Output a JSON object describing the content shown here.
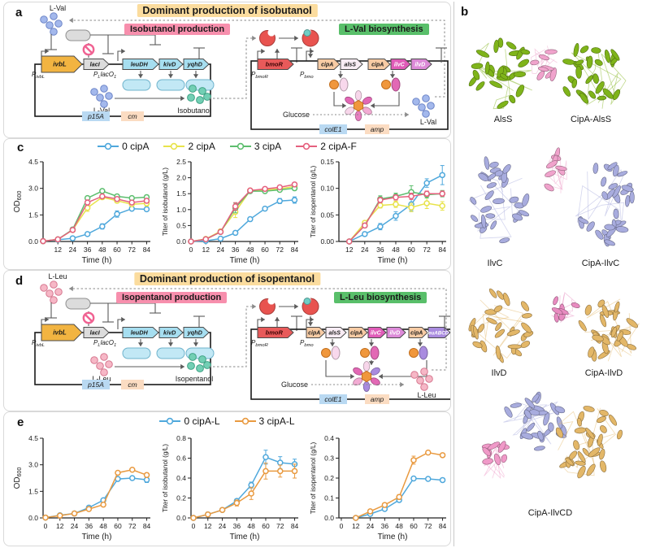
{
  "panel_a": {
    "label": "a",
    "title": "Dominant production of isobutanol",
    "module_left": "Isobutanol production",
    "module_right": "L-Val biosynthesis",
    "feedback_molecule": "L-Val",
    "intermediate": "L-Val",
    "product": "Isobutanol",
    "substrate": "Glucose",
    "output": "L-Val",
    "promoter1": [
      {
        "t": "P",
        "sub": false
      },
      {
        "t": "ivbL",
        "sub": true
      }
    ],
    "promoter2": [
      {
        "t": "P",
        "sub": false
      },
      {
        "t": "L",
        "sub": true
      },
      {
        "t": "lacO",
        "sub": false
      },
      {
        "t": "1",
        "sub": true
      }
    ],
    "promoter3": [
      {
        "t": "P",
        "sub": false
      },
      {
        "t": "bmoR",
        "sub": true
      }
    ],
    "promoter4": [
      {
        "t": "P",
        "sub": false
      },
      {
        "t": "bmo",
        "sub": true
      }
    ],
    "plasmid1": {
      "genes": [
        "ivbL",
        "lacI",
        "leuDH",
        "kivD",
        "yqhD"
      ],
      "ori": "p15A",
      "marker": "cm"
    },
    "plasmid2": {
      "genes": [
        "bmoR",
        "cipA",
        "alsS",
        "cipA",
        "ilvC",
        "ilvD"
      ],
      "ori": "colE1",
      "marker": "amp"
    }
  },
  "panel_d": {
    "label": "d",
    "title": "Dominant production of isopentanol",
    "module_left": "Isopentanol production",
    "module_right": "L-Leu biosynthesis",
    "feedback_molecule": "L-Leu",
    "intermediate": "L-Leu",
    "product": "Isopentanol",
    "substrate": "Glucose",
    "output": "L-Leu",
    "promoter1": [
      {
        "t": "P",
        "sub": false
      },
      {
        "t": "ivbL",
        "sub": true
      }
    ],
    "promoter2": [
      {
        "t": "P",
        "sub": false
      },
      {
        "t": "L",
        "sub": true
      },
      {
        "t": "lacO",
        "sub": false
      },
      {
        "t": "1",
        "sub": true
      }
    ],
    "promoter3": [
      {
        "t": "P",
        "sub": false
      },
      {
        "t": "bmoR",
        "sub": true
      }
    ],
    "promoter4": [
      {
        "t": "P",
        "sub": false
      },
      {
        "t": "bmo",
        "sub": true
      }
    ],
    "plasmid1": {
      "genes": [
        "ivbL",
        "lacI",
        "leuDH",
        "kivD",
        "yqhD"
      ],
      "ori": "p15A",
      "marker": "cm"
    },
    "plasmid2": {
      "genes": [
        "bmoR",
        "cipA",
        "alsS",
        "cipA",
        "ilvC",
        "ilvD",
        "cipA",
        "leuABCD"
      ],
      "ori": "colE1",
      "marker": "amp"
    }
  },
  "panel_b": {
    "label": "b",
    "structures": [
      {
        "name": "AlsS",
        "colors": [
          "#7FB41A"
        ]
      },
      {
        "name": "CipA-AlsS",
        "colors": [
          "#F0A3CC",
          "#7FB41A"
        ]
      },
      {
        "name": "IlvC",
        "colors": [
          "#A8ACDE"
        ]
      },
      {
        "name": "CipA-IlvC",
        "colors": [
          "#F0A3CC",
          "#A8ACDE"
        ]
      },
      {
        "name": "IlvD",
        "colors": [
          "#E3B768"
        ]
      },
      {
        "name": "CipA-IlvD",
        "colors": [
          "#E88BC0",
          "#E3B768"
        ]
      },
      {
        "name": "CipA-IlvCD",
        "colors": [
          "#A8ACDE",
          "#F099C8",
          "#E3B768"
        ]
      }
    ]
  },
  "panel_c": {
    "label": "c",
    "legend": [
      {
        "label": "0 cipA",
        "color": "#4FA8DC"
      },
      {
        "label": "2 cipA",
        "color": "#E8E34B"
      },
      {
        "label": "3 cipA",
        "color": "#5DBE6E"
      },
      {
        "label": "2 cipA-F",
        "color": "#E5607E"
      }
    ]
  },
  "panel_e": {
    "label": "e",
    "legend": [
      {
        "label": "0 cipA-L",
        "color": "#4FA8DC"
      },
      {
        "label": "3 cipA-L",
        "color": "#E99A40"
      }
    ]
  },
  "palette": {
    "banner_yellow": "#FBDC9E",
    "banner_pink": "#F78FAD",
    "banner_green": "#59BF6A",
    "gene_ivbL": "#F2B441",
    "gene_lacI": "#DCDCDC",
    "gene_operon_blue": "#A6DEF0",
    "gene_bmoR": "#E85A5A",
    "gene_cipA": "#F7CBA4",
    "gene_alsS": "#F8ECF4",
    "gene_ilvC": "#E05CB8",
    "gene_ilvD": "#DC8AD8",
    "gene_leuABCD": "#A98BDF",
    "ori_box": "#B9D9F2",
    "marker_box": "#FBDCC2",
    "lval": "#A3B8EC",
    "lval_stroke": "#6E86C8",
    "lleu": "#F6B7C6",
    "lleu_stroke": "#D67890",
    "product_teal": "#72CFB4",
    "product_stroke": "#3FA285",
    "enzyme_capsule": "#C2E8F5",
    "enzyme_capsule_stroke": "#6FB3CC",
    "scaffold_orange": "#F0973C",
    "scaffold_stroke": "#C26F1E",
    "bmoR_protein": "#E8534F",
    "inducer_dot": "#6FCEC5"
  },
  "chart_data": [
    {
      "id": "c-od600",
      "panel": "c",
      "type": "line",
      "xlabel": "Time (h)",
      "ylabel": "OD",
      "ylabel_sub": "600",
      "xlim": [
        0,
        87
      ],
      "xticks": [
        12,
        24,
        36,
        48,
        60,
        72,
        84
      ],
      "ylim": [
        0,
        4.5
      ],
      "yticks": [
        "0.0",
        "1.5",
        "3.0",
        "4.5"
      ],
      "x": [
        0,
        12,
        24,
        36,
        48,
        60,
        72,
        84
      ],
      "series": [
        {
          "name": "0 cipA",
          "color": "#4FA8DC",
          "values": [
            0.02,
            0.1,
            0.18,
            0.42,
            0.85,
            1.55,
            1.85,
            1.82
          ],
          "errors": [
            0,
            0,
            0,
            0.05,
            0.15,
            0.18,
            0.07,
            0.1
          ]
        },
        {
          "name": "2 cipA",
          "color": "#E8E34B",
          "values": [
            0.02,
            0.12,
            0.65,
            1.9,
            2.5,
            2.3,
            2.1,
            2.15
          ],
          "errors": [
            0,
            0.03,
            0.12,
            0.2,
            0.12,
            0.08,
            0.1,
            0.15
          ]
        },
        {
          "name": "3 cipA",
          "color": "#5DBE6E",
          "values": [
            0.02,
            0.12,
            0.68,
            2.45,
            2.85,
            2.55,
            2.45,
            2.5
          ],
          "errors": [
            0,
            0.03,
            0.1,
            0.1,
            0.08,
            0.1,
            0.08,
            0.12
          ]
        },
        {
          "name": "2 cipA-F",
          "color": "#E5607E",
          "values": [
            0.02,
            0.12,
            0.65,
            2.2,
            2.55,
            2.4,
            2.2,
            2.3
          ],
          "errors": [
            0,
            0.03,
            0.1,
            0.15,
            0.1,
            0.08,
            0.1,
            0.12
          ]
        }
      ]
    },
    {
      "id": "c-isobutanol",
      "panel": "c",
      "type": "line",
      "xlabel": "Time (h)",
      "ylabel": "Titer of isobutanol (g/L)",
      "xlim": [
        0,
        87
      ],
      "xticks": [
        0,
        12,
        24,
        36,
        48,
        60,
        72,
        84
      ],
      "ylim": [
        0,
        2.5
      ],
      "yticks": [
        "0.0",
        "0.5",
        "1.0",
        "1.5",
        "2.0",
        "2.5"
      ],
      "x": [
        0,
        12,
        24,
        36,
        48,
        60,
        72,
        84
      ],
      "series": [
        {
          "name": "0 cipA",
          "color": "#4FA8DC",
          "values": [
            0.0,
            0.02,
            0.09,
            0.27,
            0.7,
            1.03,
            1.27,
            1.3
          ],
          "errors": [
            0,
            0.01,
            0.02,
            0.03,
            0.04,
            0.05,
            0.08,
            0.1
          ]
        },
        {
          "name": "2 cipA",
          "color": "#E8E34B",
          "values": [
            0.0,
            0.08,
            0.32,
            0.93,
            1.6,
            1.62,
            1.65,
            1.73
          ],
          "errors": [
            0,
            0.02,
            0.04,
            0.18,
            0.04,
            0.04,
            0.05,
            0.06
          ]
        },
        {
          "name": "3 cipA",
          "color": "#5DBE6E",
          "values": [
            0.0,
            0.07,
            0.3,
            1.05,
            1.58,
            1.58,
            1.62,
            1.67
          ],
          "errors": [
            0,
            0.02,
            0.04,
            0.15,
            0.05,
            0.05,
            0.05,
            0.06
          ]
        },
        {
          "name": "2 cipA-F",
          "color": "#E5607E",
          "values": [
            0.0,
            0.07,
            0.3,
            1.1,
            1.6,
            1.65,
            1.7,
            1.79
          ],
          "errors": [
            0,
            0.02,
            0.04,
            0.12,
            0.04,
            0.05,
            0.05,
            0.05
          ]
        }
      ]
    },
    {
      "id": "c-isopentanol",
      "panel": "c",
      "type": "line",
      "xlabel": "Time (h)",
      "ylabel": "Titer of isopentanol (g/L)",
      "xlim": [
        4,
        87
      ],
      "xticks": [
        12,
        24,
        36,
        48,
        60,
        72,
        84
      ],
      "ylim": [
        0,
        0.15
      ],
      "yticks": [
        "0.00",
        "0.05",
        "0.10",
        "0.15"
      ],
      "x": [
        12,
        24,
        36,
        48,
        60,
        72,
        84
      ],
      "series": [
        {
          "name": "0 cipA",
          "color": "#4FA8DC",
          "values": [
            0.0,
            0.014,
            0.028,
            0.048,
            0.07,
            0.11,
            0.125
          ],
          "errors": [
            0,
            0.004,
            0.006,
            0.008,
            0.012,
            0.008,
            0.018
          ]
        },
        {
          "name": "2 cipA",
          "color": "#E8E34B",
          "values": [
            0.0,
            0.035,
            0.068,
            0.07,
            0.064,
            0.072,
            0.067
          ],
          "errors": [
            0,
            0.004,
            0.005,
            0.006,
            0.008,
            0.01,
            0.008
          ]
        },
        {
          "name": "3 cipA",
          "color": "#5DBE6E",
          "values": [
            0.0,
            0.03,
            0.08,
            0.085,
            0.093,
            0.088,
            0.09
          ],
          "errors": [
            0,
            0.004,
            0.006,
            0.006,
            0.012,
            0.006,
            0.006
          ]
        },
        {
          "name": "2 cipA-F",
          "color": "#E5607E",
          "values": [
            0.0,
            0.03,
            0.078,
            0.083,
            0.085,
            0.09,
            0.09
          ],
          "errors": [
            0,
            0.004,
            0.005,
            0.005,
            0.006,
            0.005,
            0.005
          ]
        }
      ]
    },
    {
      "id": "e-od600",
      "panel": "e",
      "type": "line",
      "xlabel": "Time (h)",
      "ylabel": "OD",
      "ylabel_sub": "600",
      "xlim": [
        -2,
        87
      ],
      "xticks": [
        0,
        12,
        24,
        36,
        48,
        60,
        72,
        84
      ],
      "ylim": [
        0,
        4.5
      ],
      "yticks": [
        "0.0",
        "1.5",
        "3.0",
        "4.5"
      ],
      "x": [
        0,
        12,
        24,
        36,
        48,
        60,
        72,
        84
      ],
      "series": [
        {
          "name": "0 cipA-L",
          "color": "#4FA8DC",
          "values": [
            0.02,
            0.15,
            0.25,
            0.58,
            1.0,
            2.2,
            2.25,
            2.15
          ],
          "errors": [
            0,
            0,
            0,
            0.05,
            0.08,
            0.08,
            0.06,
            0.15
          ]
        },
        {
          "name": "3 cipA-L",
          "color": "#E99A40",
          "values": [
            0.02,
            0.13,
            0.25,
            0.5,
            0.75,
            2.55,
            2.72,
            2.42
          ],
          "errors": [
            0,
            0,
            0,
            0.04,
            0.05,
            0.1,
            0.08,
            0.12
          ]
        }
      ]
    },
    {
      "id": "e-isobutanol",
      "panel": "e",
      "type": "line",
      "xlabel": "Time (h)",
      "ylabel": "Titer of isobutanol (g/L)",
      "xlim": [
        -2,
        87
      ],
      "xticks": [
        0,
        12,
        24,
        36,
        48,
        60,
        72,
        84
      ],
      "ylim": [
        0,
        0.8
      ],
      "yticks": [
        "0.0",
        "0.2",
        "0.4",
        "0.6",
        "0.8"
      ],
      "x": [
        0,
        12,
        24,
        36,
        48,
        60,
        72,
        84
      ],
      "series": [
        {
          "name": "0 cipA-L",
          "color": "#4FA8DC",
          "values": [
            0.0,
            0.035,
            0.08,
            0.17,
            0.33,
            0.61,
            0.555,
            0.54
          ],
          "errors": [
            0,
            0,
            0.01,
            0.02,
            0.03,
            0.07,
            0.06,
            0.05
          ]
        },
        {
          "name": "3 cipA-L",
          "color": "#E99A40",
          "values": [
            0.0,
            0.035,
            0.08,
            0.15,
            0.245,
            0.47,
            0.47,
            0.47
          ],
          "errors": [
            0,
            0,
            0.01,
            0.03,
            0.06,
            0.08,
            0.06,
            0.07
          ]
        }
      ]
    },
    {
      "id": "e-isopentanol",
      "panel": "e",
      "type": "line",
      "xlabel": "Time (h)",
      "ylabel": "Titer of isopentanol (g/L)",
      "xlim": [
        -2,
        87
      ],
      "xticks": [
        0,
        12,
        24,
        36,
        48,
        60,
        72,
        84
      ],
      "ylim": [
        0,
        0.4
      ],
      "yticks": [
        "0.0",
        "0.1",
        "0.2",
        "0.3",
        "0.4"
      ],
      "x": [
        12,
        24,
        36,
        48,
        60,
        72,
        84
      ],
      "series": [
        {
          "name": "0 cipA-L",
          "color": "#4FA8DC",
          "values": [
            0.0,
            0.02,
            0.045,
            0.09,
            0.198,
            0.196,
            0.19
          ],
          "errors": [
            0,
            0.003,
            0.006,
            0.01,
            0.008,
            0.006,
            0.008
          ]
        },
        {
          "name": "3 cipA-L",
          "color": "#E99A40",
          "values": [
            0.0,
            0.033,
            0.065,
            0.105,
            0.29,
            0.328,
            0.315
          ],
          "errors": [
            0,
            0.004,
            0.008,
            0.012,
            0.02,
            0.008,
            0.01
          ]
        }
      ]
    }
  ]
}
